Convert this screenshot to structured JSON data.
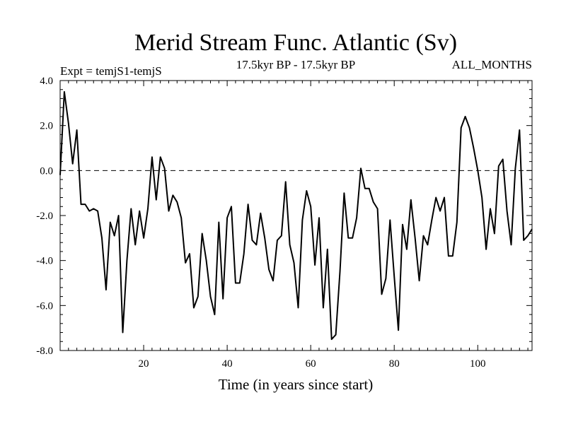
{
  "chart_data": {
    "type": "line",
    "title": "Merid Stream Func. Atlantic (Sv)",
    "subtitle_left": "Expt = temjS1-temjS",
    "subtitle_center": "17.5kyr BP - 17.5kyr BP",
    "subtitle_right": "ALL_MONTHS",
    "xlabel": "Time (in years since start)",
    "ylabel": "",
    "xlim": [
      0,
      113
    ],
    "ylim": [
      -8.0,
      4.0
    ],
    "xticks": [
      20,
      40,
      60,
      80,
      100
    ],
    "yticks": [
      4.0,
      2.0,
      0.0,
      -2.0,
      -4.0,
      -6.0,
      -8.0
    ],
    "ytick_labels": [
      "4.0",
      "2.0",
      "0.0",
      "-2.0",
      "-4.0",
      "-6.0",
      "-8.0"
    ],
    "reference_line": 0.0,
    "series": [
      {
        "name": "Merid Stream Func.",
        "x": [
          0,
          1,
          2,
          3,
          4,
          5,
          6,
          7,
          8,
          9,
          10,
          11,
          12,
          13,
          14,
          15,
          16,
          17,
          18,
          19,
          20,
          21,
          22,
          23,
          24,
          25,
          26,
          27,
          28,
          29,
          30,
          31,
          32,
          33,
          34,
          35,
          36,
          37,
          38,
          39,
          40,
          41,
          42,
          43,
          44,
          45,
          46,
          47,
          48,
          49,
          50,
          51,
          52,
          53,
          54,
          55,
          56,
          57,
          58,
          59,
          60,
          61,
          62,
          63,
          64,
          65,
          66,
          67,
          68,
          69,
          70,
          71,
          72,
          73,
          74,
          75,
          76,
          77,
          78,
          79,
          80,
          81,
          82,
          83,
          84,
          85,
          86,
          87,
          88,
          89,
          90,
          91,
          92,
          93,
          94,
          95,
          96,
          97,
          98,
          99,
          100,
          101,
          102,
          103,
          104,
          105,
          106,
          107,
          108,
          109,
          110,
          111,
          112,
          113
        ],
        "y": [
          -0.2,
          3.5,
          2.1,
          0.3,
          1.8,
          -1.5,
          -1.5,
          -1.8,
          -1.7,
          -1.8,
          -3.0,
          -5.3,
          -2.3,
          -2.9,
          -2.0,
          -7.2,
          -4.0,
          -1.7,
          -3.3,
          -1.8,
          -3.0,
          -1.7,
          0.6,
          -1.3,
          0.6,
          0.1,
          -1.8,
          -1.1,
          -1.4,
          -2.1,
          -4.1,
          -3.7,
          -6.1,
          -5.6,
          -2.8,
          -4.0,
          -5.6,
          -6.4,
          -2.3,
          -5.7,
          -2.1,
          -1.6,
          -5.0,
          -5.0,
          -3.7,
          -1.5,
          -3.1,
          -3.3,
          -1.9,
          -3.0,
          -4.4,
          -4.9,
          -3.1,
          -2.9,
          -0.5,
          -3.3,
          -4.1,
          -6.1,
          -2.2,
          -0.9,
          -1.6,
          -4.2,
          -2.1,
          -6.1,
          -3.5,
          -7.5,
          -7.3,
          -4.5,
          -1.0,
          -3.0,
          -3.0,
          -2.1,
          0.1,
          -0.8,
          -0.8,
          -1.4,
          -1.7,
          -5.5,
          -4.8,
          -2.2,
          -4.7,
          -7.1,
          -2.4,
          -3.5,
          -1.3,
          -3.0,
          -4.9,
          -2.9,
          -3.3,
          -2.2,
          -1.2,
          -1.8,
          -1.2,
          -3.8,
          -3.8,
          -2.3,
          1.9,
          2.4,
          1.9,
          1.0,
          0.0,
          -1.2,
          -3.5,
          -1.7,
          -2.8,
          0.2,
          0.5,
          -1.8,
          -3.3,
          0.1,
          1.8,
          -3.1,
          -2.9,
          -2.6
        ]
      }
    ]
  }
}
